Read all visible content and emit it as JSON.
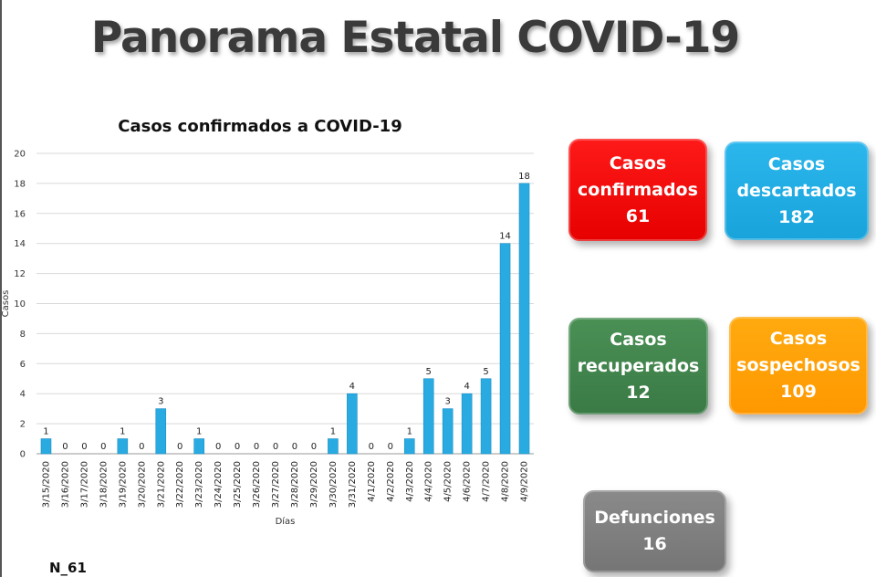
{
  "page": {
    "title": "Panorama Estatal COVID-19",
    "footnote": "N_61"
  },
  "cards": {
    "confirmados": {
      "line1": "Casos",
      "line2": "confirmados",
      "value": "61",
      "color": "#ff0000"
    },
    "descartados": {
      "line1": "Casos",
      "line2": "descartados",
      "value": "182",
      "color": "#1ea9e1"
    },
    "recuperados": {
      "line1": "Casos",
      "line2": "recuperados",
      "value": "12",
      "color": "#3f8449"
    },
    "sospechosos": {
      "line1": "Casos",
      "line2": "sospechosos",
      "value": "109",
      "color": "#ffa000"
    },
    "defunciones": {
      "line1": "Defunciones",
      "value": "16",
      "color": "#7f7f7f"
    }
  },
  "chart_data": {
    "type": "bar",
    "title": "Casos confirmados a COVID-19",
    "xlabel": "Días",
    "ylabel": "Casos",
    "ylim": [
      0,
      20
    ],
    "yticks": [
      0,
      2,
      4,
      6,
      8,
      10,
      12,
      14,
      16,
      18,
      20
    ],
    "grid": true,
    "legend": "none",
    "bar_color": "#29abe2",
    "categories": [
      "3/15/2020",
      "3/16/2020",
      "3/17/2020",
      "3/18/2020",
      "3/19/2020",
      "3/20/2020",
      "3/21/2020",
      "3/22/2020",
      "3/23/2020",
      "3/24/2020",
      "3/25/2020",
      "3/26/2020",
      "3/27/2020",
      "3/28/2020",
      "3/29/2020",
      "3/30/2020",
      "3/31/2020",
      "4/1/2020",
      "4/2/2020",
      "4/3/2020",
      "4/4/2020",
      "4/5/2020",
      "4/6/2020",
      "4/7/2020",
      "4/8/2020",
      "4/9/2020"
    ],
    "values": [
      1,
      0,
      0,
      0,
      1,
      0,
      3,
      0,
      1,
      0,
      0,
      0,
      0,
      0,
      0,
      1,
      4,
      0,
      0,
      1,
      5,
      3,
      4,
      5,
      14,
      18
    ]
  }
}
